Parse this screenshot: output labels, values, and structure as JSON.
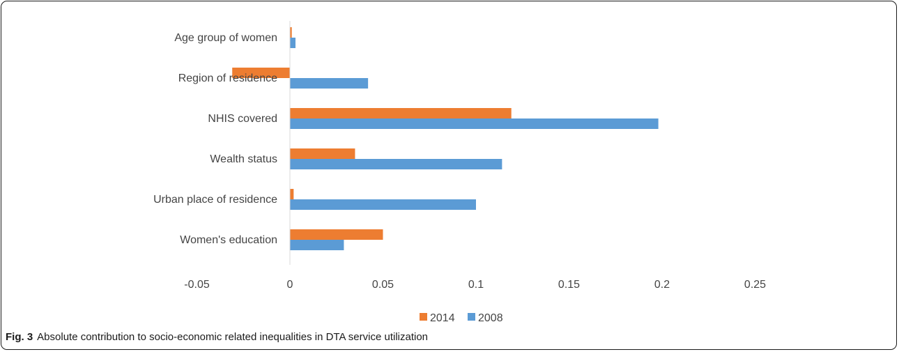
{
  "caption": {
    "label": "Fig. 3",
    "text": "Absolute contribution to socio-economic related inequalities in DTA service utilization"
  },
  "colors": {
    "2014": "#ED7D31",
    "2008": "#5B9BD5",
    "axis": "#D9D9D9"
  },
  "chart_data": {
    "type": "bar",
    "orientation": "horizontal",
    "title": "",
    "xlabel": "",
    "ylabel": "",
    "categories": [
      "Age group of women",
      "Region of residence",
      "NHIS covered",
      "Wealth status",
      "Urban place of residence",
      "Women's education"
    ],
    "series": [
      {
        "name": "2014",
        "values": [
          0.001,
          -0.031,
          0.119,
          0.035,
          0.002,
          0.05
        ]
      },
      {
        "name": "2008",
        "values": [
          0.003,
          0.042,
          0.198,
          0.114,
          0.1,
          0.029
        ]
      }
    ],
    "xlim": [
      -0.05,
      0.25
    ],
    "xticks": [
      "-0.05",
      "0",
      "0.05",
      "0.1",
      "0.15",
      "0.2",
      "0.25"
    ],
    "grid": false,
    "legend": "bottom-center"
  }
}
